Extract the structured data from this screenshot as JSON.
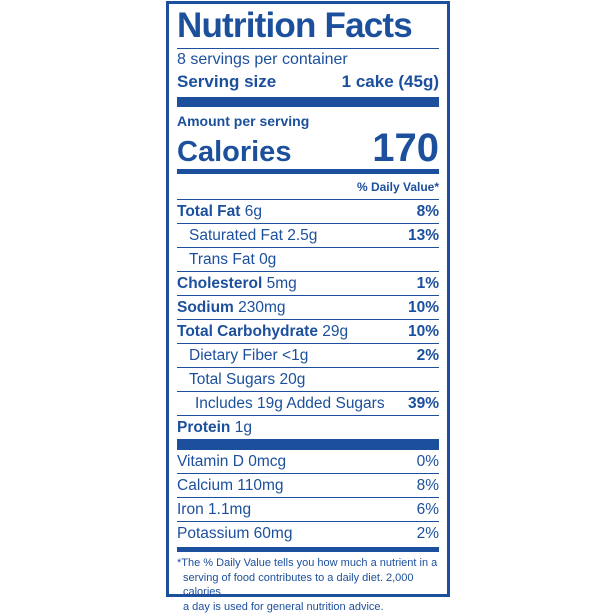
{
  "title": "Nutrition Facts",
  "servings": "8 servings per container",
  "serving_size": {
    "label": "Serving size",
    "value": "1 cake (45g)"
  },
  "amount_per_serving": "Amount per serving",
  "calories": {
    "label": "Calories",
    "value": "170"
  },
  "daily_value_header": "% Daily Value*",
  "nutrients": [
    {
      "name": "Total Fat",
      "amount": "6g",
      "dv": "8%"
    },
    {
      "name": "Saturated Fat",
      "amount": "2.5g",
      "dv": "13%"
    },
    {
      "name": "Trans Fat",
      "amount": "0g"
    },
    {
      "name": "Cholesterol",
      "amount": "5mg",
      "dv": "1%"
    },
    {
      "name": "Sodium",
      "amount": "230mg",
      "dv": "10%"
    },
    {
      "name": "Total Carbohydrate",
      "amount": "29g",
      "dv": "10%"
    },
    {
      "name": "Dietary Fiber",
      "amount": "<1g",
      "dv": "2%"
    },
    {
      "name": "Total Sugars",
      "amount": "20g"
    },
    {
      "name": "Includes 19g Added Sugars",
      "dv": "39%"
    },
    {
      "name": "Protein",
      "amount": "1g"
    }
  ],
  "vitamins": [
    {
      "name": "Vitamin D 0mcg",
      "dv": "0%"
    },
    {
      "name": "Calcium 110mg",
      "dv": "8%"
    },
    {
      "name": "Iron 1.1mg",
      "dv": "6%"
    },
    {
      "name": "Potassium 60mg",
      "dv": "2%"
    }
  ],
  "footnote": [
    "*The % Daily Value tells you how much a nutrient in a",
    "serving of food contributes to a daily diet. 2,000 calories",
    "a day is used for general nutrition advice."
  ]
}
